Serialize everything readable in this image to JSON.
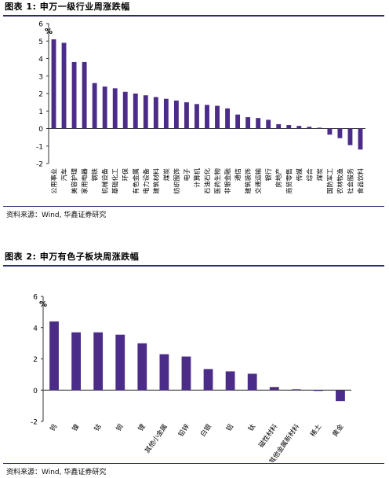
{
  "figures": [
    {
      "title": "图表 1:  申万一级行业周涨跌幅",
      "source": "资料来源：Wind, 华鑫证券研究"
    },
    {
      "title": "图表 2:  申万有色子板块周涨跌幅",
      "source": "资料来源：Wind, 华鑫证券研究"
    }
  ],
  "colors": {
    "bar": "#4b2c88",
    "axis": "#333333",
    "rule": "#2b2b6e"
  },
  "chart_data": [
    {
      "type": "bar",
      "title": "图表 1:  申万一级行业周涨跌幅",
      "ylabel": "%",
      "xlabel": "",
      "ylim": [
        -2,
        6
      ],
      "yticks": [
        6,
        5,
        4,
        3,
        2,
        1,
        0,
        -1,
        -2
      ],
      "grid": false,
      "categories": [
        "公用事业",
        "汽车",
        "美容护理",
        "家用电器",
        "钢铁",
        "机械设备",
        "基础化工",
        "环保",
        "有色金属",
        "电力设备",
        "建筑材料",
        "煤炭",
        "纺织服饰",
        "电子",
        "计算机",
        "石油石化",
        "医药生物",
        "非银金融",
        "通信",
        "建筑装饰",
        "交通运输",
        "银行",
        "房地产",
        "商贸零售",
        "传媒",
        "综合",
        "煤炭",
        "国防军工",
        "农林牧渔",
        "社会服务",
        "食品饮料"
      ],
      "values": [
        5.1,
        4.9,
        3.8,
        3.8,
        2.6,
        2.4,
        2.3,
        2.1,
        2.0,
        1.9,
        1.8,
        1.7,
        1.6,
        1.5,
        1.4,
        1.35,
        1.3,
        1.15,
        0.8,
        0.65,
        0.6,
        0.5,
        0.25,
        0.2,
        0.15,
        0.1,
        0.05,
        -0.35,
        -0.55,
        -0.95,
        -1.2
      ]
    },
    {
      "type": "bar",
      "title": "图表 2:  申万有色子板块周涨跌幅",
      "ylabel": "%",
      "xlabel": "",
      "ylim": [
        -2,
        6
      ],
      "yticks": [
        6,
        4,
        2,
        0,
        -2
      ],
      "grid": false,
      "categories": [
        "钨",
        "镍",
        "钴",
        "铜",
        "锂",
        "其他小金属",
        "铅锌",
        "白银",
        "铝",
        "钛",
        "磁性材料",
        "其他金属新材料",
        "稀土",
        "黄金"
      ],
      "values": [
        4.4,
        3.7,
        3.7,
        3.55,
        3.0,
        2.3,
        2.15,
        1.35,
        1.2,
        1.05,
        0.2,
        0.05,
        -0.05,
        -0.7
      ]
    }
  ]
}
